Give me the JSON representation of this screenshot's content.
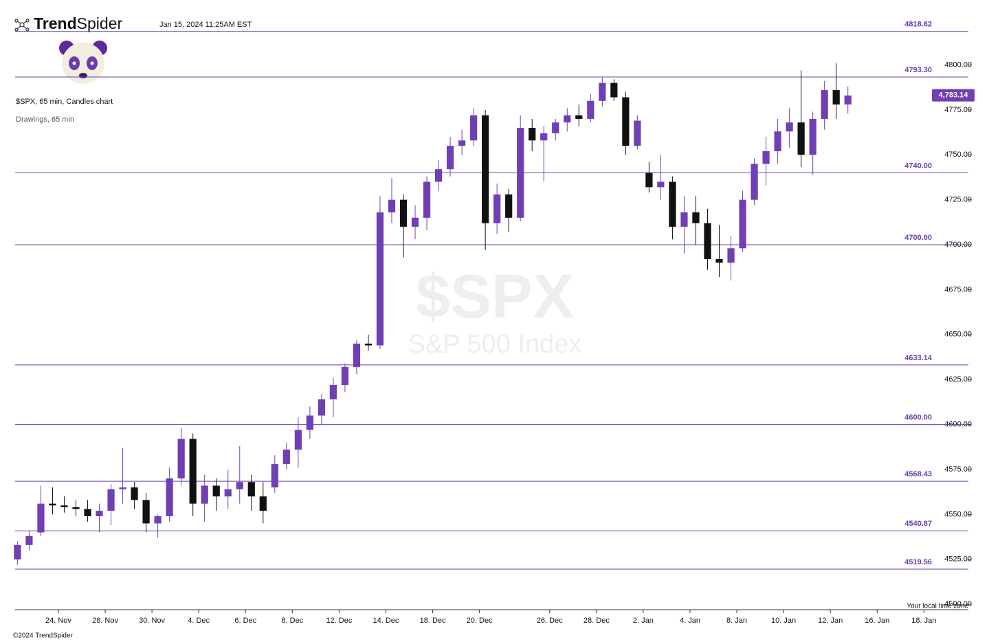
{
  "header": {
    "brand_bold": "Trend",
    "brand_light": "Spider",
    "timestamp": "Jan 15, 2024 11:25AM EST"
  },
  "footer": {
    "timezone_note": "Your local time zone",
    "copyright": "©2024 TrendSpider"
  },
  "chart_data": {
    "type": "candlestick",
    "title": "$SPX, 65 min, Candles chart",
    "subtitle": "Drawings, 65 min",
    "watermark_symbol": "$SPX",
    "watermark_name": "S&P 500 Index",
    "up_color": "#6f3fb5",
    "down_color": "#111111",
    "level_color": "#6a3fb0",
    "x": [
      0.25,
      0.75,
      1.25,
      1.75,
      2.25,
      2.75,
      3.25,
      3.75,
      4.25,
      4.75,
      5.25,
      5.75,
      6.25,
      6.75,
      7.25,
      7.75,
      8.25,
      8.75,
      9.25,
      9.75,
      10.25,
      10.75,
      11.25,
      11.75,
      12.25,
      12.75,
      13.25,
      13.75,
      14.25,
      14.75,
      15.25,
      15.75,
      16.25,
      16.75,
      17.25,
      17.75,
      18.25,
      18.75,
      19.25,
      19.75,
      20.25,
      20.75,
      21.25,
      21.75,
      22.25,
      22.75,
      23.25,
      23.75,
      24.25,
      24.75,
      25.25,
      25.75,
      26.25,
      26.75,
      27.25,
      27.75,
      28.25,
      28.75,
      29.25,
      29.75,
      30.25,
      30.75,
      31.25,
      31.75,
      32.25,
      32.75,
      33.25,
      33.75,
      34.25,
      34.75,
      35.25,
      35.75
    ],
    "open": [
      4525,
      4533,
      4540,
      4556,
      4555,
      4554,
      4553,
      4549,
      4552,
      4564,
      4565,
      4558,
      4545,
      4549,
      4570,
      4592,
      4556,
      4566,
      4560,
      4564,
      4568,
      4560,
      4565,
      4578,
      4586,
      4597,
      4605,
      4614,
      4622,
      4632,
      4645,
      4644,
      4718,
      4725,
      4710,
      4715,
      4735,
      4742,
      4755,
      4758,
      4772,
      4712,
      4728,
      4715,
      4765,
      4758,
      4762,
      4768,
      4772,
      4770,
      4780,
      4790,
      4782,
      4755,
      4740,
      4732,
      4735,
      4710,
      4718,
      4712,
      4692,
      4690,
      4698,
      4725,
      4745,
      4752,
      4763,
      4768,
      4750,
      4770,
      4786,
      4778
    ],
    "high": [
      4535,
      4541,
      4566,
      4565,
      4560,
      4558,
      4558,
      4556,
      4567,
      4587,
      4568,
      4562,
      4550,
      4576,
      4598,
      4595,
      4572,
      4570,
      4575,
      4588,
      4572,
      4568,
      4583,
      4590,
      4604,
      4610,
      4617,
      4626,
      4634,
      4647,
      4650,
      4727,
      4737,
      4728,
      4722,
      4738,
      4747,
      4760,
      4764,
      4776,
      4775,
      4734,
      4731,
      4772,
      4770,
      4766,
      4770,
      4776,
      4778,
      4784,
      4793,
      4792,
      4785,
      4772,
      4746,
      4750,
      4738,
      4727,
      4727,
      4720,
      4711,
      4705,
      4730,
      4748,
      4760,
      4770,
      4776,
      4797,
      4774,
      4791,
      4801,
      4788
    ],
    "low": [
      4522,
      4530,
      4538,
      4550,
      4551,
      4549,
      4546,
      4540,
      4544,
      4556,
      4553,
      4540,
      4537,
      4546,
      4566,
      4549,
      4546,
      4552,
      4553,
      4556,
      4552,
      4545,
      4562,
      4575,
      4576,
      4592,
      4600,
      4604,
      4618,
      4628,
      4641,
      4642,
      4712,
      4693,
      4703,
      4708,
      4730,
      4738,
      4750,
      4755,
      4697,
      4706,
      4707,
      4713,
      4752,
      4735,
      4758,
      4763,
      4766,
      4768,
      4777,
      4780,
      4750,
      4753,
      4729,
      4725,
      4703,
      4695,
      4700,
      4686,
      4682,
      4680,
      4696,
      4722,
      4733,
      4745,
      4754,
      4743,
      4739,
      4764,
      4770,
      4773
    ],
    "close": [
      4533,
      4538,
      4556,
      4555,
      4554,
      4553,
      4549,
      4552,
      4564,
      4565,
      4558,
      4545,
      4549,
      4570,
      4592,
      4556,
      4566,
      4560,
      4564,
      4568,
      4560,
      4552,
      4578,
      4586,
      4597,
      4605,
      4614,
      4622,
      4632,
      4645,
      4644,
      4718,
      4725,
      4710,
      4715,
      4735,
      4742,
      4755,
      4758,
      4772,
      4712,
      4728,
      4715,
      4765,
      4758,
      4762,
      4768,
      4772,
      4770,
      4780,
      4790,
      4782,
      4755,
      4769,
      4732,
      4735,
      4710,
      4718,
      4712,
      4692,
      4690,
      4698,
      4725,
      4745,
      4752,
      4763,
      4768,
      4750,
      4770,
      4786,
      4778,
      4783
    ],
    "xlim": [
      0.15,
      40.9
    ],
    "ylim": [
      4497,
      4817
    ],
    "xticks": [
      {
        "value": 2,
        "label": "24. Nov"
      },
      {
        "value": 4,
        "label": "28. Nov"
      },
      {
        "value": 6,
        "label": "30. Nov"
      },
      {
        "value": 8,
        "label": "4. Dec"
      },
      {
        "value": 10,
        "label": "6. Dec"
      },
      {
        "value": 12,
        "label": "8. Dec"
      },
      {
        "value": 14,
        "label": "12. Dec"
      },
      {
        "value": 16,
        "label": "14. Dec"
      },
      {
        "value": 18,
        "label": "18. Dec"
      },
      {
        "value": 20,
        "label": "20. Dec"
      },
      {
        "value": 23,
        "label": "26. Dec"
      },
      {
        "value": 25,
        "label": "28. Dec"
      },
      {
        "value": 27,
        "label": "2. Jan"
      },
      {
        "value": 29,
        "label": "4. Jan"
      },
      {
        "value": 31,
        "label": "8. Jan"
      },
      {
        "value": 33,
        "label": "10. Jan"
      },
      {
        "value": 35,
        "label": "12. Jan"
      },
      {
        "value": 37,
        "label": "16. Jan"
      },
      {
        "value": 39,
        "label": "18. Jan"
      }
    ],
    "yticks": [
      {
        "value": 4500,
        "label": "4500.00"
      },
      {
        "value": 4525,
        "label": "4525.00"
      },
      {
        "value": 4550,
        "label": "4550.00"
      },
      {
        "value": 4575,
        "label": "4575.00"
      },
      {
        "value": 4600,
        "label": "4600.00"
      },
      {
        "value": 4625,
        "label": "4625.00"
      },
      {
        "value": 4650,
        "label": "4650.00"
      },
      {
        "value": 4675,
        "label": "4675.00"
      },
      {
        "value": 4700,
        "label": "4700.00"
      },
      {
        "value": 4725,
        "label": "4725.00"
      },
      {
        "value": 4750,
        "label": "4750.00"
      },
      {
        "value": 4775,
        "label": "4775.00"
      },
      {
        "value": 4800,
        "label": "4800.00"
      }
    ],
    "levels": [
      {
        "value": 4818.62,
        "label": "4818.62"
      },
      {
        "value": 4793.3,
        "label": "4793.30"
      },
      {
        "value": 4740,
        "label": "4740.00"
      },
      {
        "value": 4700,
        "label": "4700.00"
      },
      {
        "value": 4633.14,
        "label": "4633.14"
      },
      {
        "value": 4600,
        "label": "4600.00"
      },
      {
        "value": 4568.43,
        "label": "4568.43"
      },
      {
        "value": 4540.87,
        "label": "4540.87"
      },
      {
        "value": 4519.56,
        "label": "4519.56"
      }
    ],
    "last_price": {
      "value": 4783.14,
      "label": "4,783.14"
    }
  }
}
